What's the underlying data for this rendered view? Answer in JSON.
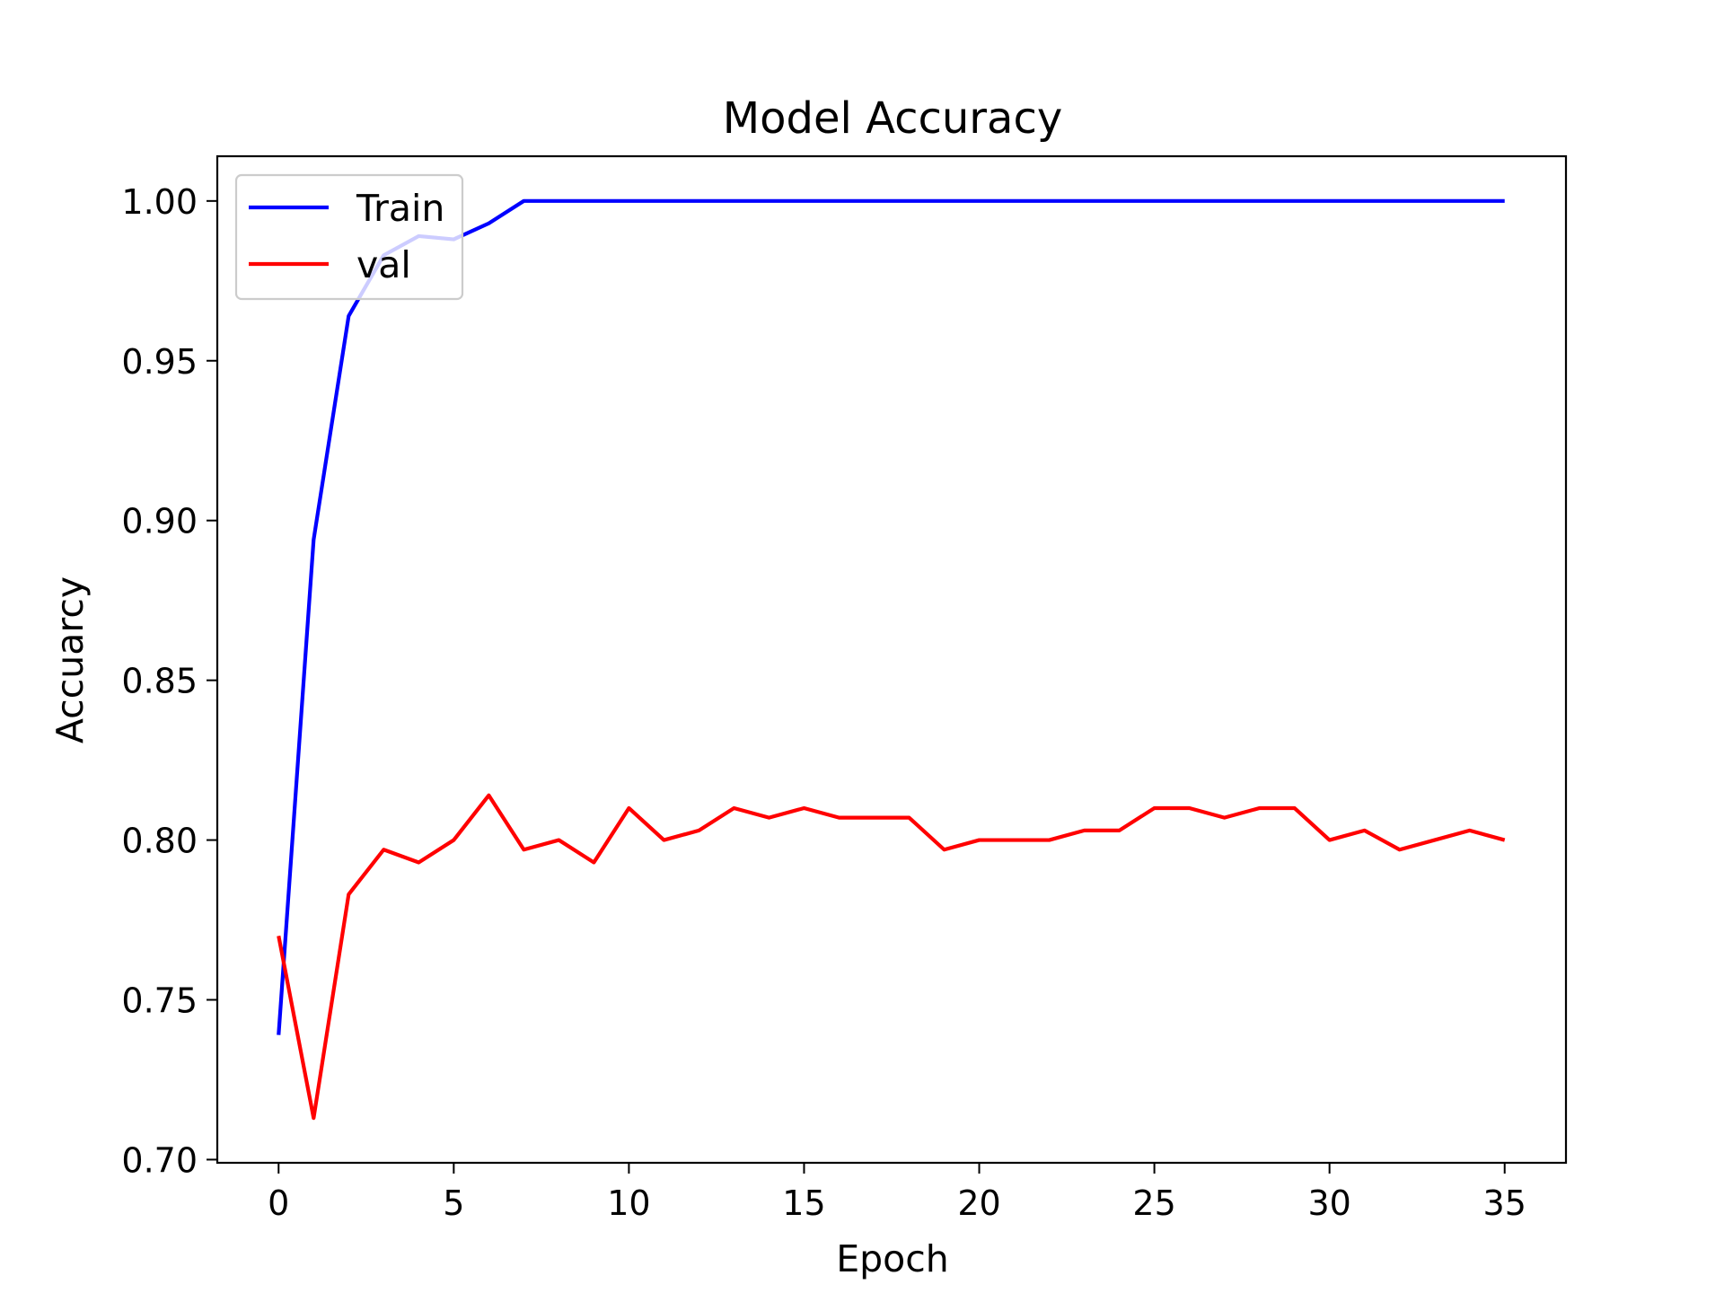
{
  "chart_data": {
    "type": "line",
    "title": "Model Accuracy",
    "xlabel": "Epoch",
    "ylabel": "Accuarcy",
    "xlim": [
      -1.75,
      36.75
    ],
    "ylim": [
      0.699,
      1.014
    ],
    "xticks": [
      0,
      5,
      10,
      15,
      20,
      25,
      30,
      35
    ],
    "yticks": [
      0.7,
      0.75,
      0.8,
      0.85,
      0.9,
      0.95,
      1.0
    ],
    "ytick_labels": [
      "0.70",
      "0.75",
      "0.80",
      "0.85",
      "0.90",
      "0.95",
      "1.00"
    ],
    "grid": false,
    "legend_position": "top-left",
    "x": [
      0,
      1,
      2,
      3,
      4,
      5,
      6,
      7,
      8,
      9,
      10,
      11,
      12,
      13,
      14,
      15,
      16,
      17,
      18,
      19,
      20,
      21,
      22,
      23,
      24,
      25,
      26,
      27,
      28,
      29,
      30,
      31,
      32,
      33,
      34,
      35
    ],
    "series": [
      {
        "name": "Train",
        "color": "#0000ff",
        "values": [
          0.739,
          0.894,
          0.964,
          0.983,
          0.989,
          0.988,
          0.993,
          1.0,
          1.0,
          1.0,
          1.0,
          1.0,
          1.0,
          1.0,
          1.0,
          1.0,
          1.0,
          1.0,
          1.0,
          1.0,
          1.0,
          1.0,
          1.0,
          1.0,
          1.0,
          1.0,
          1.0,
          1.0,
          1.0,
          1.0,
          1.0,
          1.0,
          1.0,
          1.0,
          1.0,
          1.0
        ]
      },
      {
        "name": "val",
        "color": "#ff0000",
        "values": [
          0.77,
          0.713,
          0.783,
          0.797,
          0.793,
          0.8,
          0.814,
          0.797,
          0.8,
          0.793,
          0.81,
          0.8,
          0.803,
          0.81,
          0.807,
          0.81,
          0.807,
          0.807,
          0.807,
          0.797,
          0.8,
          0.8,
          0.8,
          0.803,
          0.803,
          0.81,
          0.81,
          0.807,
          0.81,
          0.81,
          0.8,
          0.803,
          0.797,
          0.8,
          0.803,
          0.8
        ]
      }
    ]
  }
}
